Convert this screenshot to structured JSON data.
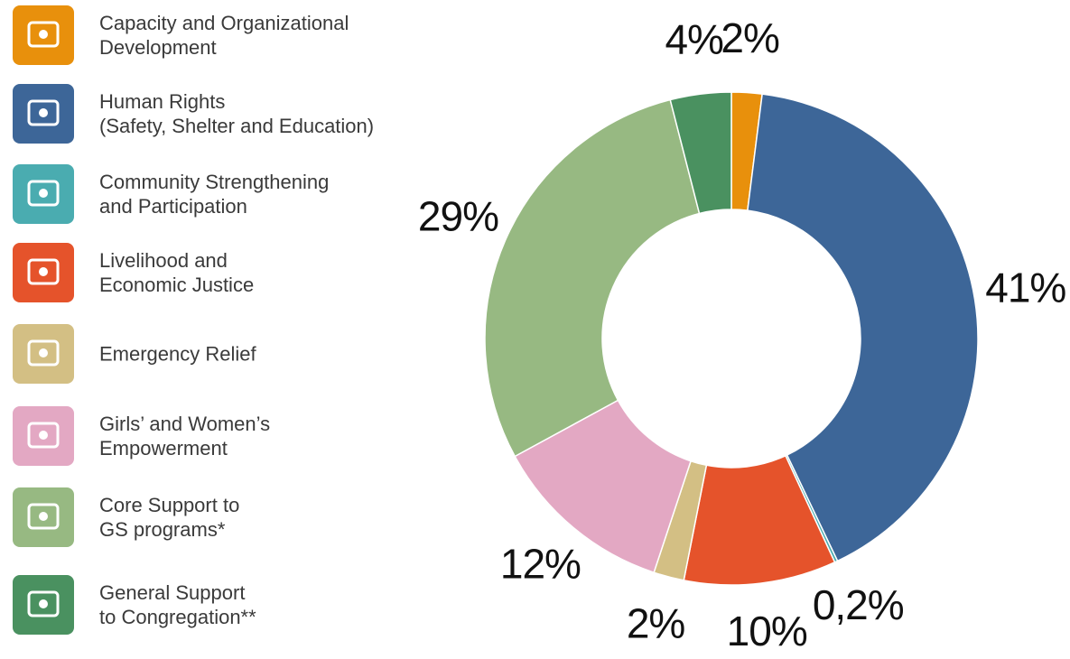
{
  "chart_data": {
    "type": "donut",
    "categories": [
      "Capacity and Organizational\nDevelopment",
      "Human Rights\n(Safety, Shelter and Education)",
      "Community Strengthening\nand Participation",
      "Livelihood and\nEconomic Justice",
      "Emergency Relief",
      "Girls’ and Women’s\nEmpowerment",
      "Core Support to\nGS programs*",
      "General Support\nto Congregation**"
    ],
    "values": [
      2,
      41,
      0.2,
      10,
      2,
      12,
      29,
      4
    ],
    "value_labels": [
      "2%",
      "41%",
      "0,2%",
      "10%",
      "2%",
      "12%",
      "29%",
      "4%"
    ],
    "colors": [
      "#e8900c",
      "#3d6698",
      "#4aacb0",
      "#e5532b",
      "#d3bf84",
      "#e3a8c3",
      "#97b982",
      "#4a9160"
    ]
  }
}
